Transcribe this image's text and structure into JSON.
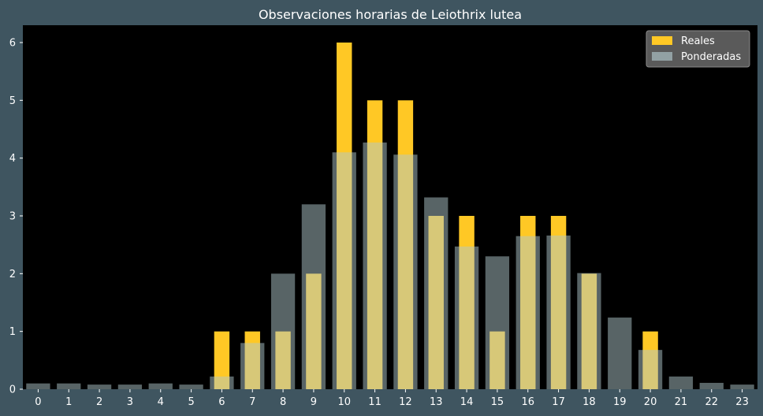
{
  "chart_data": {
    "type": "bar",
    "title": "Observaciones horarias de Leiothrix lutea",
    "xlabel": "",
    "ylabel": "",
    "categories": [
      "0",
      "1",
      "2",
      "3",
      "4",
      "5",
      "6",
      "7",
      "8",
      "9",
      "10",
      "11",
      "12",
      "13",
      "14",
      "15",
      "16",
      "17",
      "18",
      "19",
      "20",
      "21",
      "22",
      "23"
    ],
    "ylim": [
      0,
      6.3
    ],
    "yticks": [
      0,
      1,
      2,
      3,
      4,
      5,
      6
    ],
    "grid": false,
    "legend_position": "top-right",
    "series": [
      {
        "name": "Reales",
        "color": "#ffc825",
        "values": [
          0,
          0,
          0,
          0,
          0,
          0,
          1,
          1,
          1,
          2,
          6,
          5,
          5,
          3,
          3,
          1,
          3,
          3,
          2,
          0,
          1,
          0,
          0,
          0
        ]
      },
      {
        "name": "Ponderadas",
        "color": "#b0c8cc",
        "values": [
          0.1,
          0.1,
          0.08,
          0.08,
          0.1,
          0.08,
          0.22,
          0.8,
          2.0,
          3.2,
          4.1,
          4.27,
          4.06,
          3.32,
          2.47,
          2.3,
          2.65,
          2.66,
          2.01,
          1.24,
          0.68,
          0.22,
          0.11,
          0.08
        ]
      }
    ]
  },
  "colors": {
    "figure_background": "#3f5560",
    "plot_background": "#000000",
    "text": "#ffffff",
    "legend_background": "#5a5a5a"
  }
}
